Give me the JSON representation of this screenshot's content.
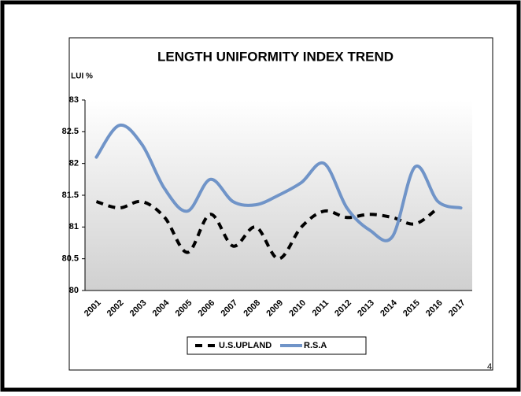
{
  "chart_data": {
    "type": "line",
    "title": "LENGTH UNIFORMITY INDEX TREND",
    "y_label": "LUI %",
    "categories": [
      "2001",
      "2002",
      "2003",
      "2004",
      "2005",
      "2006",
      "2007",
      "2008",
      "2009",
      "2010",
      "2011",
      "2012",
      "2013",
      "2014",
      "2015",
      "2016",
      "2017"
    ],
    "series": [
      {
        "name": "U.S.UPLAND",
        "color": "#000000",
        "dashed": true,
        "values": [
          81.4,
          81.3,
          81.4,
          81.15,
          80.6,
          81.2,
          80.7,
          81.0,
          80.5,
          81.0,
          81.25,
          81.15,
          81.2,
          81.15,
          81.05,
          81.3,
          null
        ]
      },
      {
        "name": "R.S.A",
        "color": "#7094c8",
        "dashed": false,
        "values": [
          82.1,
          82.6,
          82.3,
          81.6,
          81.25,
          81.75,
          81.4,
          81.35,
          81.5,
          81.7,
          82.0,
          81.3,
          80.95,
          80.85,
          81.95,
          81.4,
          81.3
        ]
      }
    ],
    "ylim": [
      80,
      83
    ],
    "yticks": [
      80,
      80.5,
      81,
      81.5,
      82,
      82.5,
      83
    ],
    "grid": false,
    "legend": "bottom"
  },
  "page_number": "4"
}
